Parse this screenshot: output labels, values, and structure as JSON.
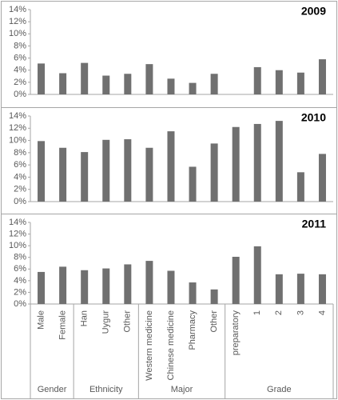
{
  "chart_data": {
    "type": "bar",
    "color": "#707070",
    "ylim": [
      0,
      14
    ],
    "yticks": [
      {
        "value": 0,
        "label": "0%"
      },
      {
        "value": 2,
        "label": "2%"
      },
      {
        "value": 4,
        "label": "4%"
      },
      {
        "value": 6,
        "label": "6%"
      },
      {
        "value": 8,
        "label": "8%"
      },
      {
        "value": 10,
        "label": "10%"
      },
      {
        "value": 12,
        "label": "12%"
      },
      {
        "value": 14,
        "label": "14%"
      }
    ],
    "groups": [
      {
        "name": "Gender",
        "categories": [
          "Male",
          "Female"
        ]
      },
      {
        "name": "Ethnicity",
        "categories": [
          "Han",
          "Uygur",
          "Other"
        ]
      },
      {
        "name": "Major",
        "categories": [
          "Western medicine",
          "Chinese medicine",
          "Pharmacy",
          "Other"
        ]
      },
      {
        "name": "Grade",
        "categories": [
          "preparatory",
          "1",
          "2",
          "3",
          "4"
        ]
      }
    ],
    "panels": [
      {
        "title": "2009",
        "values": [
          5.1,
          3.5,
          5.2,
          3.1,
          3.4,
          5.0,
          2.6,
          1.9,
          3.4,
          null,
          4.5,
          4.0,
          3.6,
          5.8
        ]
      },
      {
        "title": "2010",
        "values": [
          9.9,
          8.8,
          8.1,
          10.1,
          10.2,
          8.8,
          11.5,
          5.7,
          9.5,
          12.2,
          12.7,
          13.2,
          4.8,
          7.8
        ]
      },
      {
        "title": "2011",
        "values": [
          5.5,
          6.4,
          5.8,
          6.1,
          6.8,
          7.4,
          5.7,
          3.7,
          2.5,
          8.1,
          9.9,
          5.1,
          5.2,
          5.1
        ]
      }
    ]
  }
}
